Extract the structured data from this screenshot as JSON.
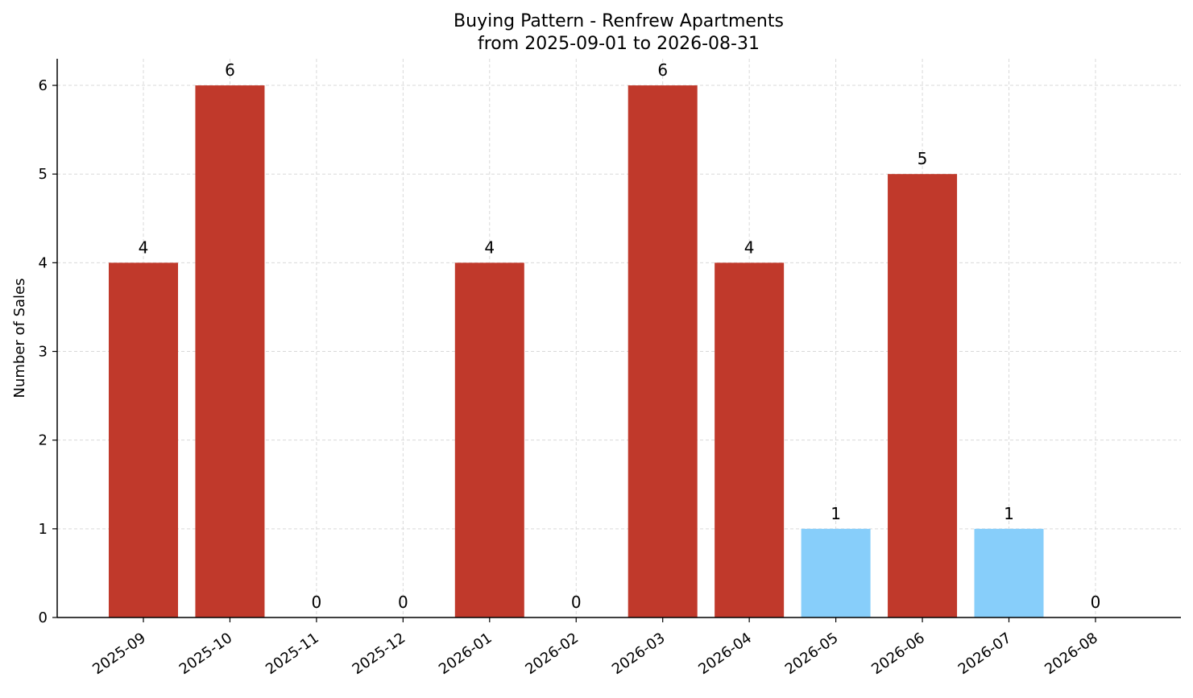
{
  "chart_data": {
    "type": "bar",
    "title": "Buying Pattern - Renfrew Apartments",
    "subtitle": "from 2025-09-01 to 2026-08-31",
    "xlabel": "",
    "ylabel": "Number of Sales",
    "categories": [
      "2025-09",
      "2025-10",
      "2025-11",
      "2025-12",
      "2026-01",
      "2026-02",
      "2026-03",
      "2026-04",
      "2026-05",
      "2026-06",
      "2026-07",
      "2026-08"
    ],
    "values": [
      4,
      6,
      0,
      0,
      4,
      0,
      6,
      4,
      1,
      5,
      1,
      0
    ],
    "bar_colors": [
      "#c0392b",
      "#c0392b",
      "#c0392b",
      "#c0392b",
      "#c0392b",
      "#c0392b",
      "#c0392b",
      "#c0392b",
      "#87cefa",
      "#c0392b",
      "#87cefa",
      "#c0392b"
    ],
    "ylim": [
      0,
      6.3
    ],
    "yticks": [
      "0",
      "1",
      "2",
      "3",
      "4",
      "5",
      "6"
    ],
    "grid": true,
    "legend": "none"
  }
}
